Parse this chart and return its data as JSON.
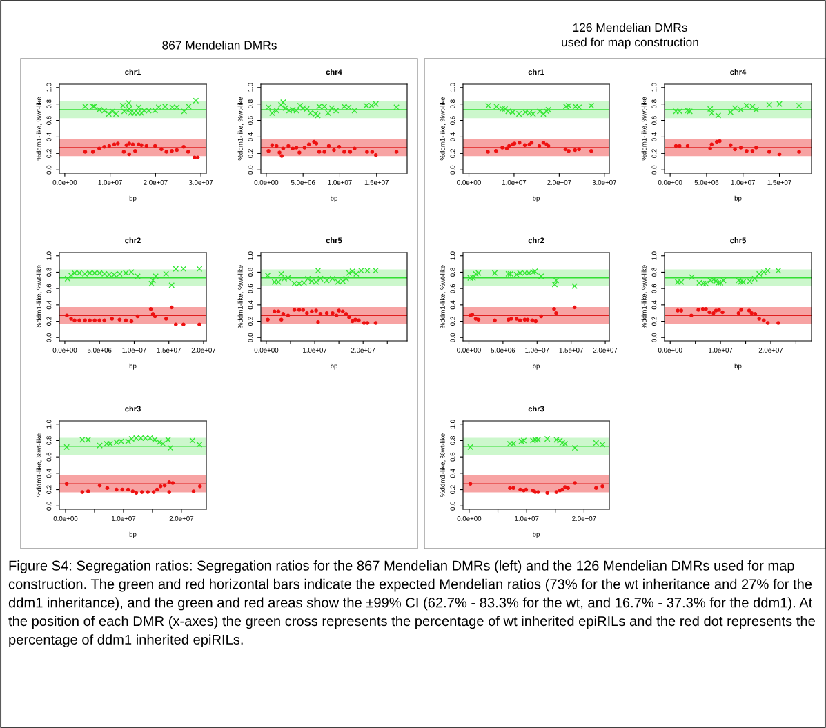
{
  "chart_data": [
    {
      "type": "scatter",
      "title": "chr1",
      "xlabel": "bp",
      "ylabel": "%ddm1-like, %wt-like",
      "annotations": [
        "867 Mendelian DMRs"
      ],
      "xlim": [
        -1200000,
        31200000
      ],
      "ylim": [
        -0.04,
        1.04
      ],
      "xticks": [
        {
          "value": 0,
          "label": "0.0e+00"
        },
        {
          "value": 10000000,
          "label": "1.0e+07"
        },
        {
          "value": 20000000,
          "label": "2.0e+07"
        },
        {
          "value": 30000000,
          "label": "3.0e+07"
        }
      ],
      "yticks": [
        {
          "value": 0,
          "label": "0.0"
        },
        {
          "value": 0.2,
          "label": "0.2"
        },
        {
          "value": 0.4,
          "label": "0.4"
        },
        {
          "value": 0.6,
          "label": "0.6"
        },
        {
          "value": 0.8,
          "label": "0.8"
        },
        {
          "value": 1,
          "label": "1.0"
        }
      ],
      "bands": [
        {
          "axis": "y",
          "from": 0.627,
          "to": 0.833,
          "color": "#ccf7cc"
        },
        {
          "axis": "y",
          "from": 0.167,
          "to": 0.373,
          "color": "#f7a3a3"
        }
      ],
      "ref_lines": [
        {
          "axis": "y",
          "value": 0.73,
          "color": "#33e033"
        },
        {
          "axis": "y",
          "value": 0.27,
          "color": "#e02020"
        }
      ],
      "series": [
        {
          "color": "#33e633",
          "marker": "cross",
          "x": [
            4500000.0,
            6200000.0,
            6500000.0,
            7600000.0,
            8700000.0,
            9700000.0,
            10500000.0,
            11300000.0,
            12800000.0,
            13100000.0,
            14100000.0,
            14200000.0,
            14500000.0,
            15300000.0,
            16100000.0,
            16300000.0,
            16900000.0,
            17500000.0,
            18500000.0,
            19900000.0,
            20700000.0,
            22100000.0,
            23700000.0,
            24700000.0,
            26300000.0,
            27300000.0,
            28900000.0
          ],
          "values": [
            0.77,
            0.77,
            0.77,
            0.73,
            0.72,
            0.68,
            0.71,
            0.68,
            0.78,
            0.71,
            0.81,
            0.74,
            0.69,
            0.69,
            0.69,
            0.76,
            0.69,
            0.72,
            0.72,
            0.72,
            0.76,
            0.77,
            0.76,
            0.76,
            0.71,
            0.77,
            0.84
          ]
        },
        {
          "color": "#ee1111",
          "marker": "circle",
          "x": [
            4500000.0,
            6200000.0,
            7600000.0,
            8700000.0,
            9800000.0,
            10900000.0,
            11700000.0,
            13000000.0,
            13600000.0,
            14200000.0,
            14200000.0,
            15000000.0,
            15500000.0,
            16300000.0,
            16900000.0,
            18000000.0,
            19900000.0,
            21300000.0,
            22400000.0,
            23600000.0,
            24700000.0,
            26200000.0,
            27200000.0,
            28600000.0,
            29300000.0
          ],
          "values": [
            0.22,
            0.22,
            0.26,
            0.28,
            0.29,
            0.31,
            0.32,
            0.22,
            0.3,
            0.32,
            0.19,
            0.31,
            0.23,
            0.31,
            0.3,
            0.29,
            0.29,
            0.25,
            0.22,
            0.23,
            0.24,
            0.28,
            0.22,
            0.15,
            0.15
          ]
        }
      ]
    },
    {
      "type": "scatter",
      "title": "chr4",
      "xlabel": "bp",
      "ylabel": "%ddm1-like, %wt-like",
      "xlim": [
        -740000,
        19150000
      ],
      "ylim": [
        -0.04,
        1.04
      ],
      "xticks": [
        {
          "value": 0,
          "label": "0.0e+00"
        },
        {
          "value": 5000000,
          "label": "5.0e+06"
        },
        {
          "value": 10000000,
          "label": "1.0e+07"
        },
        {
          "value": 15000000,
          "label": "1.5e+07"
        }
      ],
      "yticks": [
        {
          "value": 0,
          "label": "0.0"
        },
        {
          "value": 0.2,
          "label": "0.2"
        },
        {
          "value": 0.4,
          "label": "0.4"
        },
        {
          "value": 0.6,
          "label": "0.6"
        },
        {
          "value": 0.8,
          "label": "0.8"
        },
        {
          "value": 1,
          "label": "1.0"
        }
      ],
      "bands": [
        {
          "axis": "y",
          "from": 0.627,
          "to": 0.833,
          "color": "#ccf7cc"
        },
        {
          "axis": "y",
          "from": 0.167,
          "to": 0.373,
          "color": "#f7a3a3"
        }
      ],
      "ref_lines": [
        {
          "axis": "y",
          "value": 0.73,
          "color": "#33e033"
        },
        {
          "axis": "y",
          "value": 0.27,
          "color": "#e02020"
        }
      ],
      "series": [
        {
          "color": "#33e633",
          "marker": "cross",
          "x": [
            300000.0,
            800000.0,
            1400000.0,
            2000000.0,
            2300000.0,
            2600000.0,
            3100000.0,
            3600000.0,
            4100000.0,
            4600000.0,
            5000000.0,
            5500000.0,
            6000000.0,
            6700000.0,
            7000000.0,
            7200000.0,
            7900000.0,
            8400000.0,
            8900000.0,
            9500000.0,
            10600000.0,
            11200000.0,
            12000000.0,
            13600000.0,
            14300000.0,
            14900000.0,
            17700000.0
          ],
          "values": [
            0.76,
            0.69,
            0.72,
            0.79,
            0.82,
            0.75,
            0.72,
            0.73,
            0.72,
            0.78,
            0.75,
            0.74,
            0.69,
            0.68,
            0.66,
            0.77,
            0.77,
            0.69,
            0.75,
            0.72,
            0.77,
            0.76,
            0.72,
            0.78,
            0.78,
            0.8,
            0.76
          ]
        },
        {
          "color": "#ee1111",
          "marker": "circle",
          "x": [
            300000.0,
            800000.0,
            1400000.0,
            1800000.0,
            2100000.0,
            2300000.0,
            3000000.0,
            3600000.0,
            4100000.0,
            4500000.0,
            5200000.0,
            5800000.0,
            6500000.0,
            6800000.0,
            7200000.0,
            7900000.0,
            8500000.0,
            9200000.0,
            9900000.0,
            10600000.0,
            11400000.0,
            12000000.0,
            13700000.0,
            14400000.0,
            14900000.0,
            17700000.0
          ],
          "values": [
            0.23,
            0.3,
            0.29,
            0.21,
            0.17,
            0.26,
            0.29,
            0.26,
            0.27,
            0.21,
            0.27,
            0.31,
            0.34,
            0.32,
            0.22,
            0.22,
            0.29,
            0.24,
            0.28,
            0.22,
            0.22,
            0.26,
            0.22,
            0.22,
            0.18,
            0.22
          ]
        }
      ]
    },
    {
      "type": "scatter",
      "title": "chr2",
      "xlabel": "bp",
      "ylabel": "%ddm1-like, %wt-like",
      "xlim": [
        -790000,
        20400000
      ],
      "ylim": [
        -0.04,
        1.04
      ],
      "xticks": [
        {
          "value": 0,
          "label": "0.0e+00"
        },
        {
          "value": 5000000,
          "label": "5.0e+06"
        },
        {
          "value": 10000000,
          "label": "1.0e+07"
        },
        {
          "value": 15000000,
          "label": "1.5e+07"
        },
        {
          "value": 20000000,
          "label": "2.0e+07"
        }
      ],
      "yticks": [
        {
          "value": 0,
          "label": "0.0"
        },
        {
          "value": 0.2,
          "label": "0.2"
        },
        {
          "value": 0.4,
          "label": "0.4"
        },
        {
          "value": 0.6,
          "label": "0.6"
        },
        {
          "value": 0.8,
          "label": "0.8"
        },
        {
          "value": 1,
          "label": "1.0"
        }
      ],
      "bands": [
        {
          "axis": "y",
          "from": 0.627,
          "to": 0.833,
          "color": "#ccf7cc"
        },
        {
          "axis": "y",
          "from": 0.167,
          "to": 0.373,
          "color": "#f7a3a3"
        }
      ],
      "ref_lines": [
        {
          "axis": "y",
          "value": 0.73,
          "color": "#33e033"
        },
        {
          "axis": "y",
          "value": 0.27,
          "color": "#e02020"
        }
      ],
      "series": [
        {
          "color": "#33e633",
          "marker": "cross",
          "x": [
            400000.0,
            900000.0,
            1400000.0,
            2100000.0,
            2900000.0,
            3600000.0,
            4300000.0,
            5000000.0,
            5700000.0,
            6400000.0,
            7100000.0,
            7900000.0,
            8800000.0,
            9600000.0,
            10500000.0,
            12500000.0,
            12700000.0,
            13100000.0,
            14600000.0,
            15400000.0,
            16000000.0,
            17100000.0,
            19400000.0
          ],
          "values": [
            0.72,
            0.76,
            0.79,
            0.79,
            0.78,
            0.79,
            0.79,
            0.79,
            0.78,
            0.77,
            0.77,
            0.78,
            0.79,
            0.8,
            0.75,
            0.66,
            0.7,
            0.75,
            0.78,
            0.64,
            0.84,
            0.84,
            0.84
          ]
        },
        {
          "color": "#ee1111",
          "marker": "circle",
          "x": [
            300000.0,
            900000.0,
            1400000.0,
            2100000.0,
            2900000.0,
            3600000.0,
            4300000.0,
            5000000.0,
            5700000.0,
            6800000.0,
            7900000.0,
            8800000.0,
            9600000.0,
            10500000.0,
            12400000.0,
            12700000.0,
            13000000.0,
            14600000.0,
            15400000.0,
            16000000.0,
            17100000.0,
            19400000.0
          ],
          "values": [
            0.27,
            0.23,
            0.21,
            0.21,
            0.21,
            0.21,
            0.21,
            0.21,
            0.21,
            0.23,
            0.22,
            0.21,
            0.2,
            0.26,
            0.35,
            0.29,
            0.26,
            0.23,
            0.37,
            0.16,
            0.16,
            0.16
          ]
        }
      ]
    },
    {
      "type": "scatter",
      "title": "chr5",
      "xlabel": "bp",
      "ylabel": "%ddm1-like, %wt-like",
      "xlim": [
        -1130000,
        29100000
      ],
      "ylim": [
        -0.04,
        1.04
      ],
      "xticks": [
        {
          "value": 0,
          "label": "0.0e+00"
        },
        {
          "value": 5000000,
          "label": null
        },
        {
          "value": 10000000,
          "label": "1.0e+07"
        },
        {
          "value": 15000000,
          "label": null
        },
        {
          "value": 20000000,
          "label": "2.0e+07"
        },
        {
          "value": 25000000,
          "label": null
        }
      ],
      "yticks": [
        {
          "value": 0,
          "label": "0.0"
        },
        {
          "value": 0.2,
          "label": "0.2"
        },
        {
          "value": 0.4,
          "label": "0.4"
        },
        {
          "value": 0.6,
          "label": "0.6"
        },
        {
          "value": 0.8,
          "label": "0.8"
        },
        {
          "value": 1,
          "label": "1.0"
        }
      ],
      "bands": [
        {
          "axis": "y",
          "from": 0.627,
          "to": 0.833,
          "color": "#ccf7cc"
        },
        {
          "axis": "y",
          "from": 0.167,
          "to": 0.373,
          "color": "#f7a3a3"
        }
      ],
      "ref_lines": [
        {
          "axis": "y",
          "value": 0.73,
          "color": "#33e033"
        },
        {
          "axis": "y",
          "value": 0.27,
          "color": "#e02020"
        }
      ],
      "series": [
        {
          "color": "#33e633",
          "marker": "cross",
          "x": [
            300000.0,
            1700000.0,
            2500000.0,
            3100000.0,
            3700000.0,
            4500000.0,
            5800000.0,
            6800000.0,
            7800000.0,
            8600000.0,
            9400000.0,
            10300000.0,
            10700000.0,
            11200000.0,
            12500000.0,
            13700000.0,
            14800000.0,
            15800000.0,
            16500000.0,
            17100000.0,
            17800000.0,
            18600000.0,
            19600000.0,
            20900000.0,
            22600000.0
          ],
          "values": [
            0.76,
            0.68,
            0.68,
            0.78,
            0.72,
            0.73,
            0.66,
            0.66,
            0.67,
            0.72,
            0.69,
            0.68,
            0.82,
            0.72,
            0.7,
            0.72,
            0.68,
            0.69,
            0.72,
            0.79,
            0.81,
            0.78,
            0.82,
            0.82,
            0.82
          ]
        },
        {
          "color": "#ee1111",
          "marker": "circle",
          "x": [
            300000.0,
            1700000.0,
            2500000.0,
            3100000.0,
            3500000.0,
            4500000.0,
            5800000.0,
            6800000.0,
            7600000.0,
            8400000.0,
            9400000.0,
            10300000.0,
            10700000.0,
            11200000.0,
            12500000.0,
            13700000.0,
            14500000.0,
            15000000.0,
            15800000.0,
            16500000.0,
            17100000.0,
            17800000.0,
            18400000.0,
            19100000.0,
            20200000.0,
            20900000.0,
            22600000.0
          ],
          "values": [
            0.22,
            0.32,
            0.32,
            0.22,
            0.29,
            0.27,
            0.34,
            0.34,
            0.34,
            0.3,
            0.32,
            0.33,
            0.19,
            0.29,
            0.3,
            0.3,
            0.27,
            0.33,
            0.32,
            0.29,
            0.25,
            0.2,
            0.22,
            0.21,
            0.18,
            0.18,
            0.18
          ]
        }
      ]
    },
    {
      "type": "scatter",
      "title": "chr3",
      "xlabel": "bp",
      "ylabel": "%ddm1-like, %wt-like",
      "xlim": [
        -1070000,
        24300000
      ],
      "ylim": [
        -0.04,
        1.04
      ],
      "xticks": [
        {
          "value": 0,
          "label": "0.0e+00"
        },
        {
          "value": 5000000,
          "label": null
        },
        {
          "value": 10000000,
          "label": "1.0e+07"
        },
        {
          "value": 15000000,
          "label": null
        },
        {
          "value": 20000000,
          "label": "2.0e+07"
        }
      ],
      "yticks": [
        {
          "value": 0,
          "label": "0.0"
        },
        {
          "value": 0.2,
          "label": "0.2"
        },
        {
          "value": 0.4,
          "label": "0.4"
        },
        {
          "value": 0.6,
          "label": "0.6"
        },
        {
          "value": 0.8,
          "label": "0.8"
        },
        {
          "value": 1,
          "label": "1.0"
        }
      ],
      "bands": [
        {
          "axis": "y",
          "from": 0.627,
          "to": 0.833,
          "color": "#ccf7cc"
        },
        {
          "axis": "y",
          "from": 0.167,
          "to": 0.373,
          "color": "#f7a3a3"
        }
      ],
      "ref_lines": [
        {
          "axis": "y",
          "value": 0.73,
          "color": "#33e033"
        },
        {
          "axis": "y",
          "value": 0.27,
          "color": "#e02020"
        }
      ],
      "series": [
        {
          "color": "#33e633",
          "marker": "cross",
          "x": [
            200000.0,
            2900000.0,
            3900000.0,
            5900000.0,
            7100000.0,
            7700000.0,
            8800000.0,
            9600000.0,
            10800000.0,
            11400000.0,
            12200000.0,
            13000000.0,
            13800000.0,
            14600000.0,
            15400000.0,
            16200000.0,
            16800000.0,
            17700000.0,
            18100000.0,
            21900000.0,
            23100000.0
          ],
          "values": [
            0.72,
            0.81,
            0.81,
            0.74,
            0.76,
            0.76,
            0.78,
            0.79,
            0.79,
            0.82,
            0.83,
            0.83,
            0.83,
            0.83,
            0.81,
            0.78,
            0.76,
            0.81,
            0.71,
            0.8,
            0.75
          ]
        },
        {
          "color": "#ee1111",
          "marker": "circle",
          "x": [
            200000.0,
            2900000.0,
            3900000.0,
            5900000.0,
            7200000.0,
            8800000.0,
            9800000.0,
            10800000.0,
            11600000.0,
            12200000.0,
            13200000.0,
            14200000.0,
            15200000.0,
            15800000.0,
            16400000.0,
            17100000.0,
            17900000.0,
            17900000.0,
            18500000.0,
            22100000.0,
            23200000.0
          ],
          "values": [
            0.27,
            0.17,
            0.18,
            0.25,
            0.22,
            0.2,
            0.2,
            0.2,
            0.18,
            0.16,
            0.17,
            0.17,
            0.17,
            0.2,
            0.24,
            0.25,
            0.29,
            0.17,
            0.28,
            0.18,
            0.24
          ]
        }
      ]
    },
    {
      "type": "scatter",
      "title": "chr1",
      "xlabel": "bp",
      "ylabel": "%ddm1-like, %wt-like",
      "annotations": [
        "126 Mendelian DMRs\nused for map construction"
      ],
      "xlim": [
        -1300000,
        31100000
      ],
      "ylim": [
        -0.04,
        1.04
      ],
      "xticks": [
        {
          "value": 0,
          "label": "0.0e+00"
        },
        {
          "value": 10000000,
          "label": "1.0e+07"
        },
        {
          "value": 20000000,
          "label": "2.0e+07"
        },
        {
          "value": 30000000,
          "label": "3.0e+07"
        }
      ],
      "yticks": [
        {
          "value": 0,
          "label": "0.0"
        },
        {
          "value": 0.2,
          "label": "0.2"
        },
        {
          "value": 0.4,
          "label": "0.4"
        },
        {
          "value": 0.6,
          "label": "0.6"
        },
        {
          "value": 0.8,
          "label": "0.8"
        },
        {
          "value": 1,
          "label": "1.0"
        }
      ],
      "bands": [
        {
          "axis": "y",
          "from": 0.627,
          "to": 0.833,
          "color": "#ccf7cc"
        },
        {
          "axis": "y",
          "from": 0.167,
          "to": 0.373,
          "color": "#f7a3a3"
        }
      ],
      "ref_lines": [
        {
          "axis": "y",
          "value": 0.73,
          "color": "#33e033"
        },
        {
          "axis": "y",
          "value": 0.27,
          "color": "#e02020"
        }
      ],
      "series": [
        {
          "color": "#33e633",
          "marker": "cross",
          "x": [
            4300000.0,
            6100000.0,
            7400000.0,
            8000000.0,
            8700000.0,
            9700000.0,
            11100000.0,
            12500000.0,
            13400000.0,
            14200000.0,
            15700000.0,
            16500000.0,
            17200000.0,
            17600000.0,
            21500000.0,
            22100000.0,
            23600000.0,
            24400000.0,
            27100000.0
          ],
          "values": [
            0.78,
            0.77,
            0.74,
            0.74,
            0.71,
            0.7,
            0.68,
            0.7,
            0.69,
            0.68,
            0.71,
            0.68,
            0.71,
            0.73,
            0.77,
            0.78,
            0.77,
            0.76,
            0.78
          ]
        },
        {
          "color": "#ee1111",
          "marker": "circle",
          "x": [
            4200000.0,
            6000000.0,
            7400000.0,
            8400000.0,
            8900000.0,
            9700000.0,
            10100000.0,
            11200000.0,
            12400000.0,
            13400000.0,
            13900000.0,
            15600000.0,
            16500000.0,
            17200000.0,
            17600000.0,
            21400000.0,
            22100000.0,
            23500000.0,
            24400000.0,
            27100000.0
          ],
          "values": [
            0.22,
            0.23,
            0.27,
            0.26,
            0.29,
            0.31,
            0.32,
            0.33,
            0.3,
            0.31,
            0.33,
            0.29,
            0.33,
            0.31,
            0.29,
            0.25,
            0.23,
            0.24,
            0.25,
            0.23
          ]
        }
      ]
    },
    {
      "type": "scatter",
      "title": "chr4",
      "xlabel": "bp",
      "ylabel": "%ddm1-like, %wt-like",
      "xlim": [
        -770000,
        19400000
      ],
      "ylim": [
        -0.04,
        1.04
      ],
      "xticks": [
        {
          "value": 0,
          "label": "0.0e+00"
        },
        {
          "value": 5000000,
          "label": "5.0e+06"
        },
        {
          "value": 10000000,
          "label": "1.0e+07"
        },
        {
          "value": 15000000,
          "label": "1.5e+07"
        }
      ],
      "yticks": [
        {
          "value": 0,
          "label": "0.0"
        },
        {
          "value": 0.2,
          "label": "0.2"
        },
        {
          "value": 0.4,
          "label": "0.4"
        },
        {
          "value": 0.6,
          "label": "0.6"
        },
        {
          "value": 0.8,
          "label": "0.8"
        },
        {
          "value": 1,
          "label": "1.0"
        }
      ],
      "bands": [
        {
          "axis": "y",
          "from": 0.627,
          "to": 0.833,
          "color": "#ccf7cc"
        },
        {
          "axis": "y",
          "from": 0.167,
          "to": 0.373,
          "color": "#f7a3a3"
        }
      ],
      "ref_lines": [
        {
          "axis": "y",
          "value": 0.73,
          "color": "#33e033"
        },
        {
          "axis": "y",
          "value": 0.27,
          "color": "#e02020"
        }
      ],
      "series": [
        {
          "color": "#33e633",
          "marker": "cross",
          "x": [
            800000.0,
            1300000.0,
            2400000.0,
            2700000.0,
            5500000.0,
            5700000.0,
            6600000.0,
            8300000.0,
            8900000.0,
            9700000.0,
            10500000.0,
            11300000.0,
            11800000.0,
            13600000.0,
            15000000.0,
            17700000.0
          ],
          "values": [
            0.71,
            0.71,
            0.72,
            0.71,
            0.74,
            0.69,
            0.66,
            0.7,
            0.75,
            0.73,
            0.78,
            0.77,
            0.73,
            0.79,
            0.8,
            0.78
          ]
        },
        {
          "color": "#ee1111",
          "marker": "circle",
          "x": [
            800000.0,
            1300000.0,
            2400000.0,
            5500000.0,
            5700000.0,
            6400000.0,
            6800000.0,
            8300000.0,
            8900000.0,
            9700000.0,
            10500000.0,
            11300000.0,
            11800000.0,
            13600000.0,
            15000000.0,
            17700000.0
          ],
          "values": [
            0.29,
            0.29,
            0.29,
            0.26,
            0.31,
            0.34,
            0.35,
            0.3,
            0.25,
            0.27,
            0.23,
            0.23,
            0.27,
            0.22,
            0.19,
            0.22
          ]
        }
      ]
    },
    {
      "type": "scatter",
      "title": "chr2",
      "xlabel": "bp",
      "ylabel": "%ddm1-like, %wt-like",
      "xlim": [
        -860000,
        20600000
      ],
      "ylim": [
        -0.04,
        1.04
      ],
      "xticks": [
        {
          "value": 0,
          "label": "0.0e+00"
        },
        {
          "value": 5000000,
          "label": "5.0e+06"
        },
        {
          "value": 10000000,
          "label": "1.0e+07"
        },
        {
          "value": 15000000,
          "label": "1.5e+07"
        },
        {
          "value": 20000000,
          "label": "2.0e+07"
        }
      ],
      "yticks": [
        {
          "value": 0,
          "label": "0.0"
        },
        {
          "value": 0.2,
          "label": "0.2"
        },
        {
          "value": 0.4,
          "label": "0.4"
        },
        {
          "value": 0.6,
          "label": "0.6"
        },
        {
          "value": 0.8,
          "label": "0.8"
        },
        {
          "value": 1,
          "label": "1.0"
        }
      ],
      "bands": [
        {
          "axis": "y",
          "from": 0.627,
          "to": 0.833,
          "color": "#ccf7cc"
        },
        {
          "axis": "y",
          "from": 0.167,
          "to": 0.373,
          "color": "#f7a3a3"
        }
      ],
      "ref_lines": [
        {
          "axis": "y",
          "value": 0.73,
          "color": "#33e033"
        },
        {
          "axis": "y",
          "value": 0.27,
          "color": "#e02020"
        }
      ],
      "series": [
        {
          "color": "#33e633",
          "marker": "cross",
          "x": [
            200000.0,
            600000.0,
            1000000.0,
            1400000.0,
            3800000.0,
            5800000.0,
            6100000.0,
            7000000.0,
            7500000.0,
            8200000.0,
            8800000.0,
            9400000.0,
            9700000.0,
            10600000.0,
            12600000.0,
            12800000.0,
            15500000.0
          ],
          "values": [
            0.73,
            0.73,
            0.78,
            0.79,
            0.79,
            0.78,
            0.78,
            0.77,
            0.79,
            0.79,
            0.79,
            0.8,
            0.81,
            0.75,
            0.65,
            0.7,
            0.63
          ]
        },
        {
          "color": "#ee1111",
          "marker": "circle",
          "x": [
            200000.0,
            500000.0,
            1000000.0,
            1400000.0,
            3800000.0,
            5800000.0,
            6200000.0,
            7000000.0,
            7500000.0,
            8200000.0,
            8600000.0,
            9300000.0,
            9800000.0,
            10600000.0,
            12500000.0,
            12800000.0,
            15500000.0
          ],
          "values": [
            0.27,
            0.28,
            0.23,
            0.22,
            0.21,
            0.22,
            0.23,
            0.23,
            0.21,
            0.22,
            0.22,
            0.21,
            0.2,
            0.26,
            0.35,
            0.3,
            0.37
          ]
        }
      ]
    },
    {
      "type": "scatter",
      "title": "chr5",
      "xlabel": "bp",
      "ylabel": "%ddm1-like, %wt-like",
      "xlim": [
        -1130000,
        28100000
      ],
      "ylim": [
        -0.04,
        1.04
      ],
      "xticks": [
        {
          "value": 0,
          "label": "0.0e+00"
        },
        {
          "value": 5000000,
          "label": null
        },
        {
          "value": 10000000,
          "label": "1.0e+07"
        },
        {
          "value": 15000000,
          "label": null
        },
        {
          "value": 20000000,
          "label": "2.0e+07"
        },
        {
          "value": 25000000,
          "label": null
        }
      ],
      "yticks": [
        {
          "value": 0,
          "label": "0.0"
        },
        {
          "value": 0.2,
          "label": "0.2"
        },
        {
          "value": 0.4,
          "label": "0.4"
        },
        {
          "value": 0.6,
          "label": "0.6"
        },
        {
          "value": 0.8,
          "label": "0.8"
        },
        {
          "value": 1,
          "label": "1.0"
        }
      ],
      "bands": [
        {
          "axis": "y",
          "from": 0.627,
          "to": 0.833,
          "color": "#ccf7cc"
        },
        {
          "axis": "y",
          "from": 0.167,
          "to": 0.373,
          "color": "#f7a3a3"
        }
      ],
      "ref_lines": [
        {
          "axis": "y",
          "value": 0.73,
          "color": "#33e033"
        },
        {
          "axis": "y",
          "value": 0.27,
          "color": "#e02020"
        }
      ],
      "series": [
        {
          "color": "#33e633",
          "marker": "cross",
          "x": [
            1500000.0,
            2200000.0,
            4300000.0,
            5800000.0,
            6600000.0,
            7100000.0,
            8000000.0,
            8600000.0,
            9100000.0,
            9600000.0,
            10000000.0,
            10600000.0,
            13600000.0,
            14000000.0,
            14500000.0,
            15800000.0,
            16800000.0,
            17700000.0,
            18600000.0,
            19400000.0,
            21500000.0
          ],
          "values": [
            0.68,
            0.68,
            0.74,
            0.67,
            0.66,
            0.66,
            0.7,
            0.71,
            0.69,
            0.67,
            0.67,
            0.7,
            0.7,
            0.68,
            0.68,
            0.69,
            0.72,
            0.78,
            0.8,
            0.82,
            0.82
          ]
        },
        {
          "color": "#ee1111",
          "marker": "circle",
          "x": [
            1500000.0,
            2200000.0,
            4200000.0,
            5600000.0,
            6500000.0,
            7100000.0,
            7800000.0,
            8600000.0,
            9100000.0,
            9700000.0,
            10400000.0,
            13600000.0,
            14100000.0,
            15700000.0,
            16200000.0,
            16900000.0,
            17700000.0,
            18600000.0,
            19400000.0,
            21500000.0
          ],
          "values": [
            0.33,
            0.33,
            0.27,
            0.34,
            0.35,
            0.35,
            0.31,
            0.3,
            0.33,
            0.34,
            0.31,
            0.3,
            0.34,
            0.33,
            0.3,
            0.29,
            0.23,
            0.21,
            0.18,
            0.18
          ]
        }
      ]
    },
    {
      "type": "scatter",
      "title": "chr3",
      "xlabel": "bp",
      "ylabel": "%ddm1-like, %wt-like",
      "annotations": [
        "Figure S4: Segregation ratios: Segregation ratios for the 867 Mendelian DMRs (left) and the 126 Mendelian DMRs used for map construction. The green and red horizontal bars indicate the expected Mendelian ratios (73% for the wt inheritance and 27% for the ddm1 inheritance), and the green and red areas show the ±99% CI (62.7% - 83.3% for the wt, and 16.7% - 37.3% for the ddm1). At the position of each DMR (x-axes) the green cross represents the percentage of wt inherited epiRILs and the red dot represents the percentage of ddm1 inherited epiRILs."
      ],
      "xlim": [
        -1070000,
        24400000
      ],
      "ylim": [
        -0.04,
        1.04
      ],
      "xticks": [
        {
          "value": 0,
          "label": "0.0e+00"
        },
        {
          "value": 5000000,
          "label": null
        },
        {
          "value": 10000000,
          "label": "1.0e+07"
        },
        {
          "value": 15000000,
          "label": null
        },
        {
          "value": 20000000,
          "label": "2.0e+07"
        }
      ],
      "yticks": [
        {
          "value": 0,
          "label": "0.0"
        },
        {
          "value": 0.2,
          "label": "0.2"
        },
        {
          "value": 0.4,
          "label": "0.4"
        },
        {
          "value": 0.6,
          "label": "0.6"
        },
        {
          "value": 0.8,
          "label": "0.8"
        },
        {
          "value": 1,
          "label": "1.0"
        }
      ],
      "bands": [
        {
          "axis": "y",
          "from": 0.627,
          "to": 0.833,
          "color": "#ccf7cc"
        },
        {
          "axis": "y",
          "from": 0.167,
          "to": 0.373,
          "color": "#f7a3a3"
        }
      ],
      "ref_lines": [
        {
          "axis": "y",
          "value": 0.73,
          "color": "#33e033"
        },
        {
          "axis": "y",
          "value": 0.27,
          "color": "#e02020"
        }
      ],
      "series": [
        {
          "color": "#33e633",
          "marker": "cross",
          "x": [
            200000.0,
            7100000.0,
            7700000.0,
            9100000.0,
            9500000.0,
            11100000.0,
            11500000.0,
            12000000.0,
            13600000.0,
            15200000.0,
            15800000.0,
            16200000.0,
            16700000.0,
            18400000.0,
            22100000.0,
            23200000.0
          ],
          "values": [
            0.72,
            0.76,
            0.76,
            0.79,
            0.8,
            0.8,
            0.81,
            0.81,
            0.82,
            0.81,
            0.8,
            0.77,
            0.76,
            0.71,
            0.77,
            0.75
          ]
        },
        {
          "color": "#ee1111",
          "marker": "circle",
          "x": [
            200000.0,
            7100000.0,
            7700000.0,
            8900000.0,
            9500000.0,
            9900000.0,
            11100000.0,
            11500000.0,
            12000000.0,
            13600000.0,
            15200000.0,
            15800000.0,
            16200000.0,
            16700000.0,
            17200000.0,
            18400000.0,
            22100000.0,
            23200000.0
          ],
          "values": [
            0.27,
            0.22,
            0.22,
            0.2,
            0.19,
            0.2,
            0.19,
            0.17,
            0.17,
            0.16,
            0.17,
            0.19,
            0.2,
            0.23,
            0.22,
            0.28,
            0.22,
            0.24
          ]
        }
      ]
    }
  ]
}
